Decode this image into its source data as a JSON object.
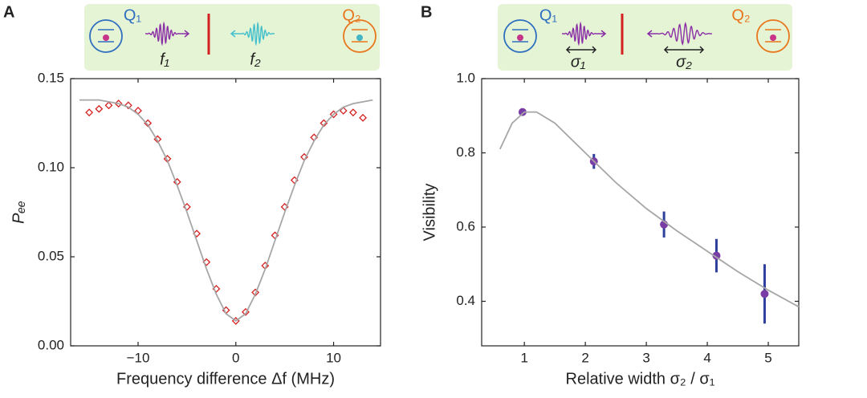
{
  "chart_data": [
    {
      "type": "line",
      "panel_label": "A",
      "inset_labels": [
        "Q₁",
        "Q₂",
        "f₁",
        "f₂"
      ],
      "xlabel": "Frequency difference Δf (MHz)",
      "ylabel": "Pₑₑ",
      "xlim": [
        -16.9,
        14.8
      ],
      "ylim": [
        0,
        0.15
      ],
      "xticks": [
        {
          "value": -10,
          "label": "−10"
        },
        0,
        10
      ],
      "yticks": [
        {
          "value": 0,
          "label": "0.00"
        },
        0.05,
        {
          "value": 0.1,
          "label": "0.10"
        },
        0.15
      ],
      "x": [
        -16,
        -15,
        -14,
        -13,
        -12,
        -11,
        -10,
        -9,
        -8,
        -7,
        -6,
        -5,
        -4,
        -3,
        -2,
        -1,
        0,
        1,
        2,
        3,
        4,
        5,
        6,
        7,
        8,
        9,
        10,
        11,
        12,
        13,
        14
      ],
      "series": [
        {
          "color": "#d42020",
          "marker": "diamond",
          "values": [
            null,
            0.131,
            0.133,
            0.135,
            0.136,
            0.135,
            0.132,
            0.125,
            0.116,
            0.105,
            0.092,
            0.078,
            0.063,
            0.047,
            0.032,
            0.02,
            0.014,
            0.019,
            0.03,
            0.045,
            0.062,
            0.078,
            0.093,
            0.106,
            0.117,
            0.125,
            0.13,
            0.132,
            0.131,
            0.128,
            null
          ]
        },
        {
          "color": "#a6a6a6",
          "values": [
            0.138,
            0.138,
            0.138,
            0.137,
            0.136,
            0.134,
            0.13,
            0.124,
            0.115,
            0.104,
            0.09,
            0.075,
            0.059,
            0.043,
            0.029,
            0.018,
            0.014,
            0.018,
            0.029,
            0.043,
            0.059,
            0.075,
            0.09,
            0.104,
            0.115,
            0.124,
            0.13,
            0.134,
            0.136,
            0.137,
            0.138
          ]
        }
      ]
    },
    {
      "type": "scatter",
      "panel_label": "B",
      "inset_labels": [
        "Q₁",
        "Q₂",
        "σ₁",
        "σ₂"
      ],
      "xlabel": "Relative width σ₂ / σ₁",
      "ylabel": "Visibility",
      "xlim": [
        0.3,
        5.5
      ],
      "ylim": [
        0.28,
        1.0
      ],
      "xticks": [
        1,
        2,
        3,
        4,
        5
      ],
      "yticks": [
        0.4,
        0.6,
        0.8,
        {
          "value": 1,
          "label": "1.0"
        }
      ],
      "series": [
        {
          "color": "#7a3da6",
          "error_color": "#2e3f9e",
          "x": [
            0.97,
            2.14,
            3.29,
            4.15,
            4.94
          ],
          "values": [
            0.91,
            0.777,
            0.607,
            0.523,
            0.42
          ],
          "errors": [
            0.01,
            0.02,
            0.035,
            0.045,
            0.08
          ]
        },
        {
          "type": "line",
          "color": "#a6a6a6",
          "x": [
            0.6,
            0.8,
            1.0,
            1.2,
            1.5,
            2.0,
            2.5,
            3.0,
            3.5,
            4.0,
            4.5,
            5.0,
            5.5
          ],
          "values": [
            0.81,
            0.88,
            0.91,
            0.91,
            0.88,
            0.8,
            0.72,
            0.65,
            0.59,
            0.535,
            0.48,
            0.43,
            0.385
          ]
        }
      ]
    }
  ]
}
